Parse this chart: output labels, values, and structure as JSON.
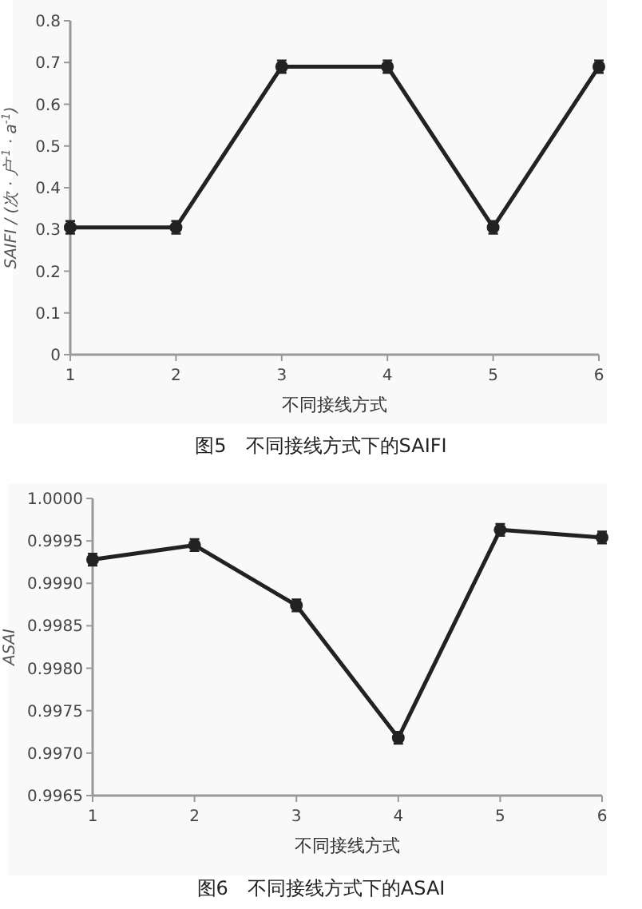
{
  "chart_data": [
    {
      "type": "line",
      "categories": [
        "1",
        "2",
        "3",
        "4",
        "5",
        "6"
      ],
      "values": [
        0.305,
        0.305,
        0.69,
        0.69,
        0.305,
        0.69
      ],
      "errors": [
        0.015,
        0.015,
        0.015,
        0.015,
        0.015,
        0.015
      ],
      "color": "#222222",
      "marker": "circle",
      "xlabel": "不同接线方式",
      "ylabel": "SAIFI / (次 · 户$^{-1}$ · a$^{-1}$)",
      "ylim": [
        0,
        0.8
      ],
      "yticks": [
        0,
        0.1,
        0.2,
        0.3,
        0.4,
        0.5,
        0.6,
        0.7,
        0.8
      ],
      "grid": false,
      "annotations": [
        "图5　不同接线方式下的SAIFI"
      ]
    },
    {
      "type": "line",
      "categories": [
        "1",
        "2",
        "3",
        "4",
        "5",
        "6"
      ],
      "values": [
        0.99928,
        0.99945,
        0.99874,
        0.99718,
        0.99963,
        0.99954
      ],
      "errors": [
        7e-05,
        7e-05,
        7e-05,
        7e-05,
        7e-05,
        7e-05
      ],
      "color": "#222222",
      "marker": "circle",
      "xlabel": "不同接线方式",
      "ylabel": "ASAI",
      "ylim": [
        0.9965,
        1.0
      ],
      "yticks": [
        {
          "value": 0.9965,
          "label": "0.9965"
        },
        {
          "value": 0.997,
          "label": "0.9970"
        },
        {
          "value": 0.9975,
          "label": "0.9975"
        },
        {
          "value": 0.998,
          "label": "0.9980"
        },
        {
          "value": 0.9985,
          "label": "0.9985"
        },
        {
          "value": 0.999,
          "label": "0.9990"
        },
        {
          "value": 0.9995,
          "label": "0.9995"
        },
        {
          "value": 1.0,
          "label": "1.0000"
        }
      ],
      "grid": false,
      "annotations": [
        "图6　不同接线方式下的ASAI"
      ]
    }
  ]
}
